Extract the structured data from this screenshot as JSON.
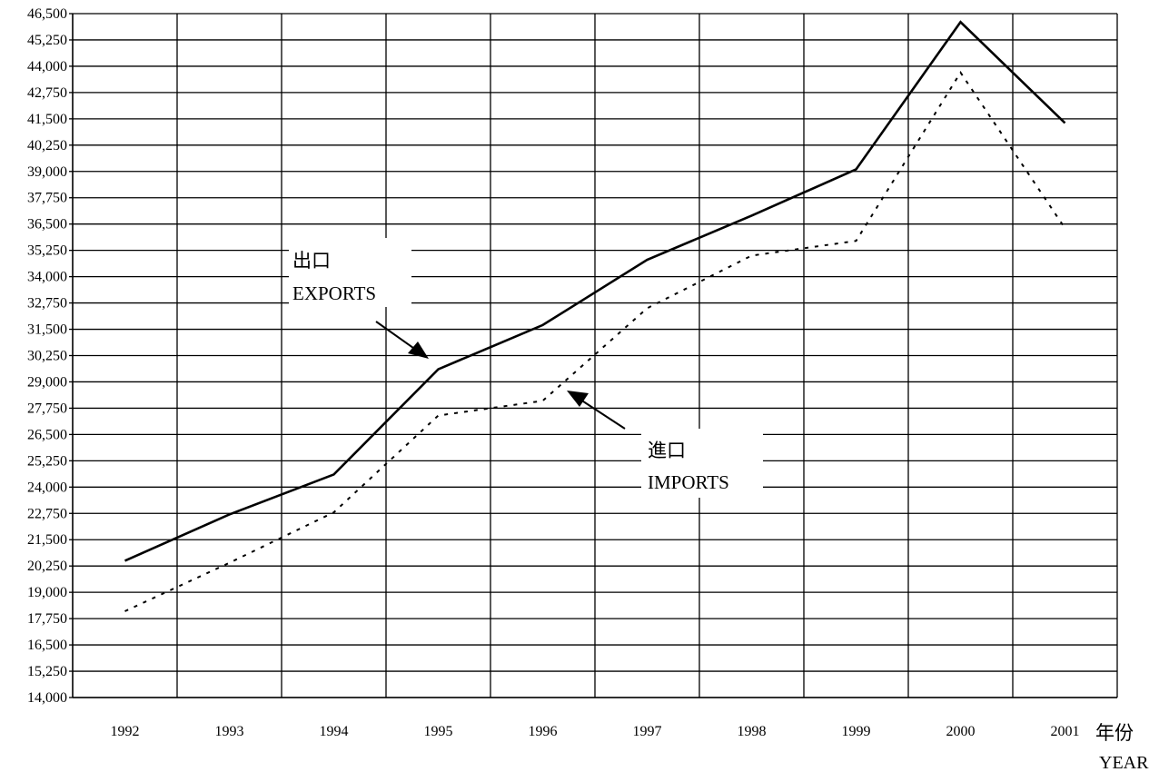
{
  "chart_data": {
    "type": "line",
    "title": "",
    "xlabel": "年份 YEAR",
    "xlabel_cjk": "年份",
    "xlabel_en": "YEAR",
    "ylabel": "",
    "categories": [
      "1992",
      "1993",
      "1994",
      "1995",
      "1996",
      "1997",
      "1998",
      "1999",
      "2000",
      "2001"
    ],
    "ylim": [
      14000,
      46500
    ],
    "yticks": [
      "14,000",
      "15,250",
      "16,500",
      "17,750",
      "19,000",
      "20,250",
      "21,500",
      "22,750",
      "24,000",
      "25,250",
      "26,500",
      "27,750",
      "29,000",
      "30,250",
      "31,500",
      "32,750",
      "34,000",
      "35,250",
      "36,500",
      "37,750",
      "39,000",
      "40,250",
      "41,500",
      "42,750",
      "44,000",
      "45,250",
      "46,500"
    ],
    "grid": true,
    "series": [
      {
        "name": "出口 EXPORTS",
        "name_cjk": "出口",
        "name_en": "EXPORTS",
        "style": "solid",
        "color": "#000000",
        "values": [
          20500,
          22700,
          24600,
          29600,
          31700,
          34800,
          36900,
          39100,
          46100,
          41300
        ]
      },
      {
        "name": "進口 IMPORTS",
        "name_cjk": "進口",
        "name_en": "IMPORTS",
        "style": "dotted",
        "color": "#000000",
        "values": [
          18100,
          20400,
          22800,
          27400,
          28100,
          32500,
          35000,
          35700,
          43700,
          36300
        ]
      }
    ]
  }
}
